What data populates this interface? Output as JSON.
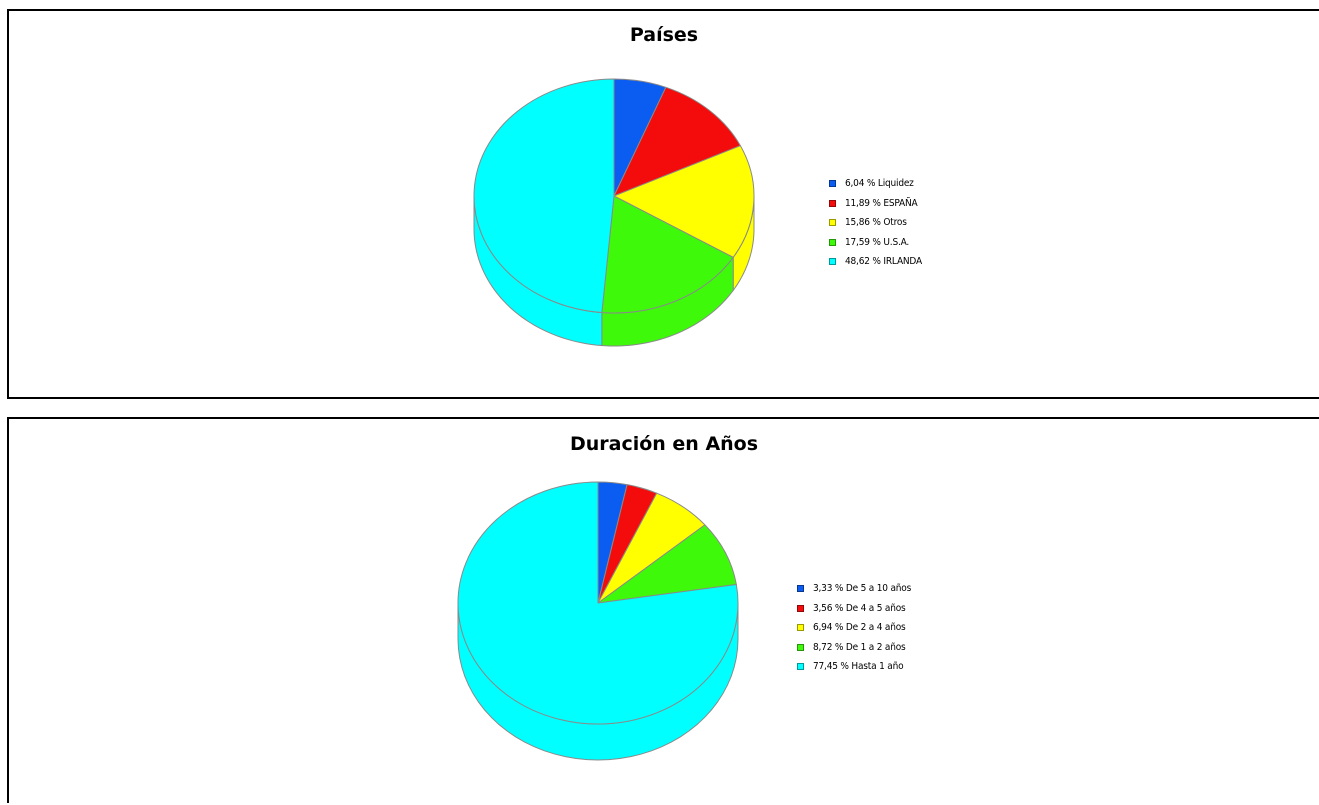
{
  "chart_data": [
    {
      "type": "pie",
      "title": "Países",
      "categories": [
        "Liquidez",
        "ESPAÑA",
        "Otros",
        "U.S.A.",
        "IRLANDA"
      ],
      "values": [
        6.04,
        11.89,
        15.86,
        17.59,
        48.62
      ],
      "legend_labels": [
        "6,04 % Liquidez",
        "11,89 % ESPAÑA",
        "15,86 % Otros",
        "17,59 % U.S.A.",
        "48,62 % IRLANDA"
      ],
      "colors": [
        "#0b5cf0",
        "#f40b0b",
        "#ffff00",
        "#3ff90b",
        "#00ffff"
      ],
      "legend_placement": "right",
      "style": "3d-pie"
    },
    {
      "type": "pie",
      "title": "Duración en Años",
      "categories": [
        "De 5 a 10 años",
        "De 4 a 5 años",
        "De 2 a 4 años",
        "De 1 a 2 años",
        "Hasta 1 año"
      ],
      "values": [
        3.33,
        3.56,
        6.94,
        8.72,
        77.45
      ],
      "legend_labels": [
        "3,33 % De 5 a 10 años",
        "3,56 % De 4 a 5 años",
        "6,94 % De 2 a 4 años",
        "8,72 % De 1 a 2 años",
        "77,45 % Hasta 1 año"
      ],
      "colors": [
        "#0b5cf0",
        "#f40b0b",
        "#ffff00",
        "#3ff90b",
        "#00ffff"
      ],
      "legend_placement": "right",
      "style": "3d-pie"
    }
  ]
}
